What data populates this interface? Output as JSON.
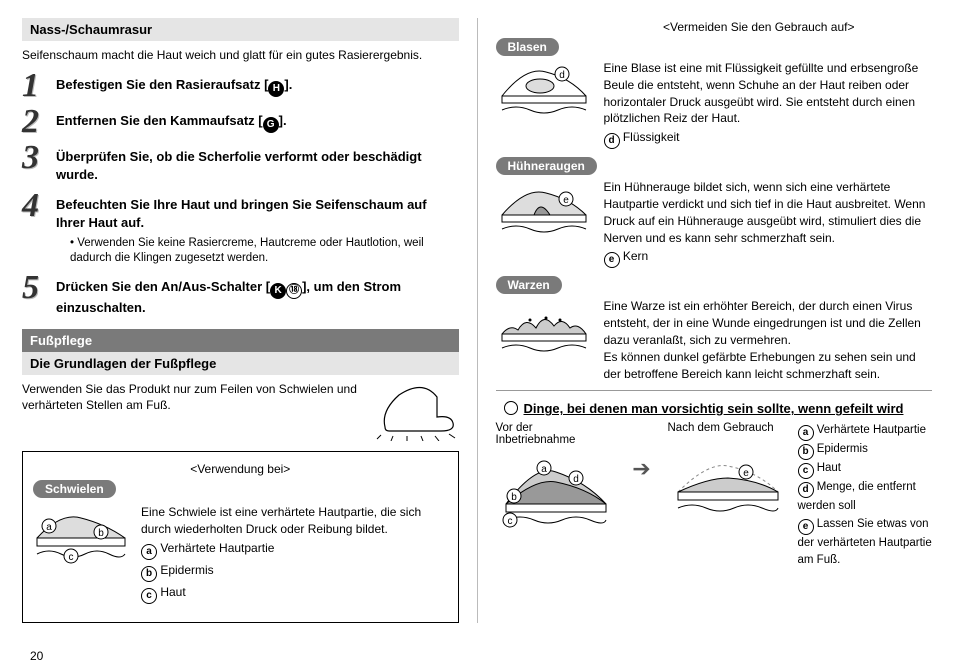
{
  "pageNumber": "20",
  "left": {
    "wetShave": {
      "title": "Nass-/Schaumrasur",
      "intro": "Seifenschaum macht die Haut weich und glatt für ein gutes Rasierergebnis.",
      "steps": [
        {
          "n": "1",
          "text": "Befestigen Sie den Rasieraufsatz [",
          "icon": "H",
          "tail": "]."
        },
        {
          "n": "2",
          "text": "Entfernen Sie den Kammaufsatz [",
          "icon": "G",
          "tail": "]."
        },
        {
          "n": "3",
          "text": "Überprüfen Sie, ob die Scherfolie verformt oder beschädigt wurde."
        },
        {
          "n": "4",
          "text": "Befeuchten Sie Ihre Haut und bringen Sie Seifenschaum auf Ihrer Haut auf.",
          "note": "Verwenden Sie keine Rasiercreme, Hautcreme oder Hautlotion, weil dadurch die Klingen zugesetzt werden."
        },
        {
          "n": "5",
          "text": "Drücken Sie den An/Aus-Schalter [",
          "icon": "K",
          "icon2": "⑱",
          "tail": "], um den Strom einzuschalten."
        }
      ]
    },
    "footCare": {
      "title": "Fußpflege",
      "sub": "Die Grundlagen der Fußpflege",
      "text": "Verwenden Sie das Produkt nur zum Feilen von Schwielen und verhärteten Stellen am Fuß.",
      "box": {
        "caption": "<Verwendung bei>",
        "pill": "Schwielen",
        "desc": "Eine Schwiele ist eine verhärtete Hautpartie, die sich durch wiederholten Druck oder Reibung bildet.",
        "legend": [
          {
            "m": "a",
            "t": "Verhärtete Hautpartie"
          },
          {
            "m": "b",
            "t": "Epidermis"
          },
          {
            "m": "c",
            "t": "Haut"
          }
        ]
      }
    }
  },
  "right": {
    "avoid": {
      "caption": "<Vermeiden Sie den Gebrauch auf>",
      "items": [
        {
          "pill": "Blasen",
          "desc": "Eine Blase ist eine mit Flüssigkeit gefüllte und erbsengroße Beule die entsteht, wenn Schuhe an der Haut reiben oder horizontaler Druck ausgeübt wird. Sie entsteht durch einen plötzlichen Reiz der Haut.",
          "marker": "d",
          "markerLabel": "Flüssigkeit"
        },
        {
          "pill": "Hühneraugen",
          "desc": "Ein Hühnerauge bildet sich, wenn sich eine verhärtete Hautpartie verdickt und sich tief in die Haut ausbreitet. Wenn Druck auf ein Hühnerauge ausgeübt wird, stimuliert dies die Nerven und es kann sehr schmerzhaft sein.",
          "marker": "e",
          "markerLabel": "Kern"
        },
        {
          "pill": "Warzen",
          "desc": "Eine Warze ist ein erhöhter Bereich, der durch einen Virus entsteht, der in eine Wunde eingedrungen ist und die Zellen dazu veranlaßt, sich zu vermehren.\nEs können dunkel gefärbte Erhebungen zu sehen sein und der betroffene Bereich kann leicht schmerzhaft sein."
        }
      ]
    },
    "precaution": {
      "title": "Dinge, bei denen man vorsichtig sein sollte, wenn gefeilt wird",
      "beforeLabel": "Vor der Inbetriebnahme",
      "afterLabel": "Nach dem Gebrauch",
      "legend": [
        {
          "m": "a",
          "t": "Verhärtete Hautpartie"
        },
        {
          "m": "b",
          "t": "Epidermis"
        },
        {
          "m": "c",
          "t": "Haut"
        },
        {
          "m": "d",
          "t": "Menge, die entfernt werden soll"
        },
        {
          "m": "e",
          "t": "Lassen Sie etwas von der verhärteten Hautpartie am Fuß."
        }
      ]
    }
  }
}
